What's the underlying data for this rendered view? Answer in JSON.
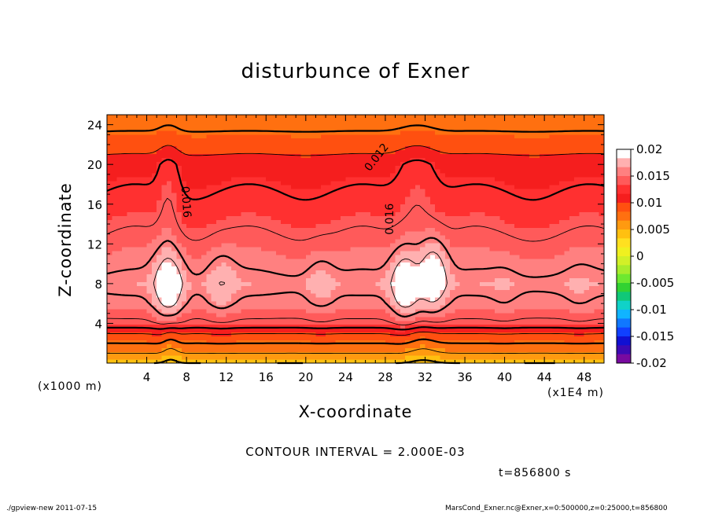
{
  "chart_data": {
    "type": "heatmap",
    "subtype": "filled-contour",
    "title": "disturbunce of Exner",
    "xlabel": "X-coordinate",
    "ylabel": "Z-coordinate",
    "x_unit_label": "(x1000 m)",
    "x_scale_label": "(x1E4 m)",
    "x_ticks": [
      "4",
      "8",
      "12",
      "16",
      "20",
      "24",
      "28",
      "32",
      "36",
      "40",
      "44",
      "48"
    ],
    "y_ticks": [
      "4",
      "8",
      "12",
      "16",
      "20",
      "24"
    ],
    "xlim": [
      0,
      50
    ],
    "ylim": [
      0,
      25
    ],
    "colorbar_ticks": [
      "0.02",
      "0.015",
      "0.01",
      "0.005",
      "0",
      "-0.005",
      "-0.01",
      "-0.015",
      "-0.02"
    ],
    "colorbar_range": [
      -0.02,
      0.02
    ],
    "colorbar_colors": [
      "#ffffff",
      "#ffb0b0",
      "#ff8080",
      "#ff5a5a",
      "#ff3030",
      "#f51e1e",
      "#ff5010",
      "#ff7010",
      "#ff9a10",
      "#ffc010",
      "#ffe020",
      "#f0f020",
      "#d2f028",
      "#a8ec2c",
      "#6ee830",
      "#32d232",
      "#10c878",
      "#10d2c8",
      "#10b4ff",
      "#1078ff",
      "#1040ff",
      "#1010d2",
      "#3c0ab4",
      "#780aa0"
    ],
    "contour_labels": [
      "0.016",
      "0.012",
      "0.016"
    ],
    "contour_interval_text": "CONTOUR INTERVAL = 2.000E-03",
    "time_label": "t=856800 s",
    "field_profile": {
      "z": [
        0,
        1,
        2,
        3,
        4,
        6,
        8,
        12,
        16,
        20,
        22,
        24,
        25
      ],
      "value": [
        0.004,
        0.006,
        0.008,
        0.01,
        0.0135,
        0.0155,
        0.0165,
        0.0145,
        0.0125,
        0.011,
        0.009,
        0.0075,
        0.0065
      ]
    },
    "bumps": [
      {
        "x": 6.2,
        "z": 8,
        "amp": 0.0045
      },
      {
        "x": 11.5,
        "z": 8,
        "amp": 0.0016
      },
      {
        "x": 21.5,
        "z": 8,
        "amp": 0.0012
      },
      {
        "x": 30.0,
        "z": 8,
        "amp": 0.0045
      },
      {
        "x": 32.8,
        "z": 9,
        "amp": 0.0045
      },
      {
        "x": 40.0,
        "z": 7,
        "amp": 0.0005
      },
      {
        "x": 47.5,
        "z": 7,
        "amp": 0.0005
      }
    ]
  },
  "footer": {
    "left": "./gpview-new   2011-07-15",
    "right": "MarsCond_Exner.nc@Exner,x=0:500000,z=0:25000,t=856800"
  }
}
